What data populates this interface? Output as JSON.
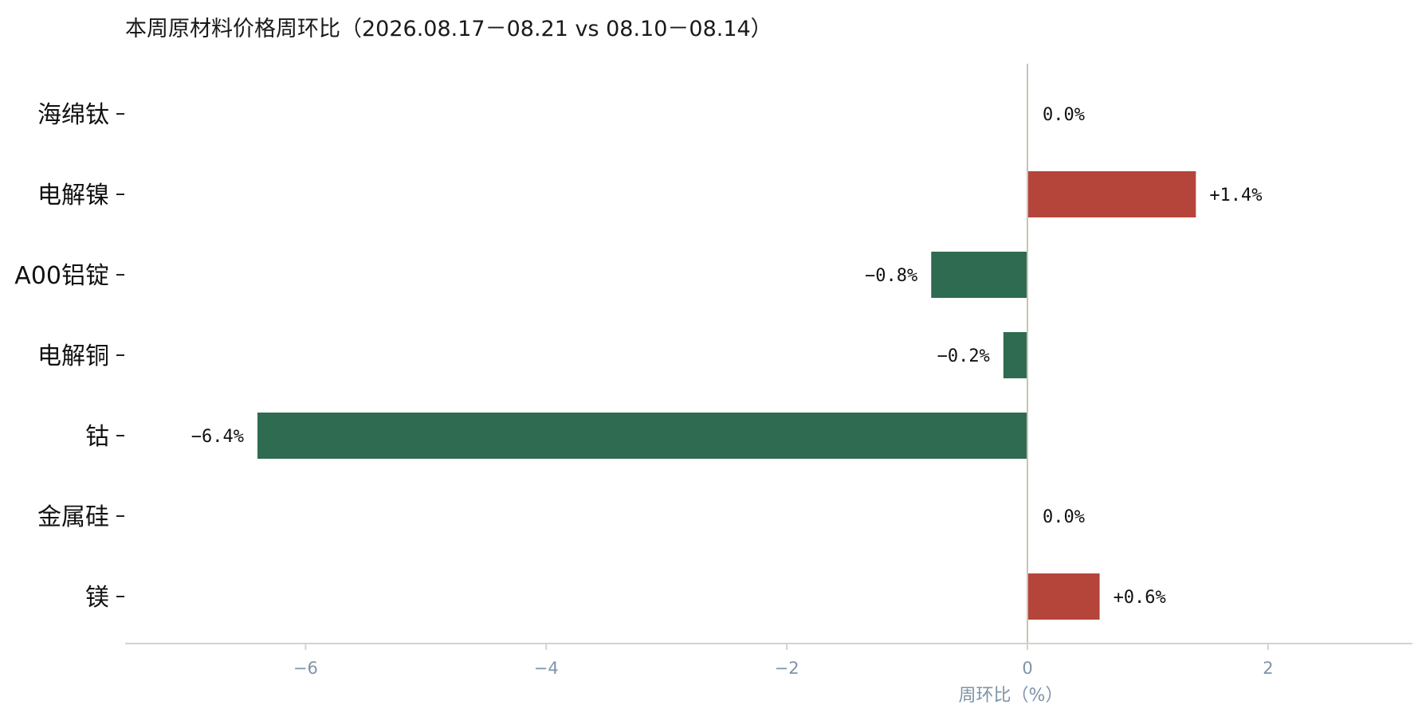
{
  "chart_data": {
    "type": "bar",
    "orientation": "horizontal",
    "title": "本周原材料价格周环比（2026.08.17－08.21 vs 08.10－08.14）",
    "xlabel": "周环比（%）",
    "ylabel": "",
    "categories": [
      "海绵钛",
      "电解镍",
      "A00铝锭",
      "电解铜",
      "钴",
      "金属硅",
      "镁"
    ],
    "values": [
      0.0,
      1.4,
      -0.8,
      -0.2,
      -6.4,
      0.0,
      0.6
    ],
    "value_labels": [
      "0.0%",
      "+1.4%",
      "−0.8%",
      "−0.2%",
      "−6.4%",
      "0.0%",
      "+0.6%"
    ],
    "xlim": [
      -7.5,
      3.2
    ],
    "xticks": [
      -6,
      -4,
      -2,
      0,
      2
    ],
    "xtick_labels": [
      "−6",
      "−4",
      "−2",
      "0",
      "2"
    ],
    "grid": false,
    "colors": {
      "positive": "#b5443b",
      "negative": "#2e6b50",
      "zero_line": "#c9c4b8",
      "axis": "#d6d2ca"
    }
  }
}
